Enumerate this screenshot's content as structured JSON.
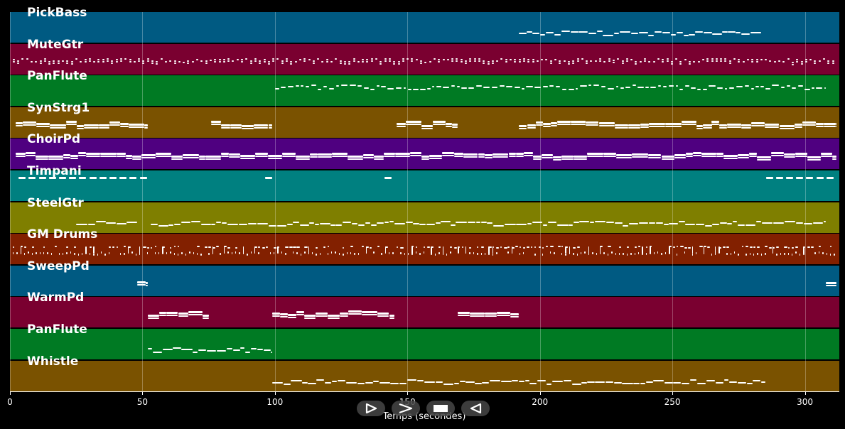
{
  "xaxis": {
    "title": "Temps (secondes)",
    "min": 0,
    "max": 313,
    "ticks": [
      0,
      50,
      100,
      150,
      200,
      250,
      300
    ]
  },
  "colors": {
    "background": "#000000",
    "note": "#ffffff",
    "grid": "#ffffff"
  },
  "tracks": [
    {
      "name": "PickBass",
      "color": "#005a82",
      "style": "legato",
      "mode": "irregular",
      "segments": [
        [
          192,
          284
        ]
      ]
    },
    {
      "name": "MuteGtr",
      "color": "#7a0030",
      "style": "dense",
      "mode": "dense",
      "segments": [
        [
          1,
          312
        ]
      ]
    },
    {
      "name": "PanFlute",
      "color": "#007a23",
      "style": "short",
      "mode": "irregular",
      "segments": [
        [
          100,
          308
        ]
      ]
    },
    {
      "name": "SynStrg1",
      "color": "#7a5200",
      "style": "chords",
      "mode": "chords",
      "segments": [
        [
          2,
          52
        ],
        [
          76,
          99
        ],
        [
          146,
          169
        ],
        [
          192,
          312
        ]
      ]
    },
    {
      "name": "ChoirPd",
      "color": "#4f0080",
      "style": "chords",
      "mode": "chords",
      "segments": [
        [
          2,
          312
        ]
      ]
    },
    {
      "name": "Timpani",
      "color": "#008080",
      "style": "dashes",
      "mode": "dashes",
      "segments": [
        [
          3,
          52
        ],
        [
          96,
          99
        ],
        [
          141,
          145
        ],
        [
          285,
          312
        ]
      ]
    },
    {
      "name": "SteelGtr",
      "color": "#7f7f00",
      "style": "legato",
      "mode": "irregular",
      "segments": [
        [
          25,
          48
        ],
        [
          53,
          308
        ]
      ]
    },
    {
      "name": "GM Drums",
      "color": "#822000",
      "style": "drums",
      "mode": "drums",
      "segments": [
        [
          1,
          312
        ]
      ]
    },
    {
      "name": "SweepPd",
      "color": "#005a82",
      "style": "chords",
      "mode": "chords",
      "segments": [
        [
          48,
          52
        ],
        [
          308,
          312
        ]
      ]
    },
    {
      "name": "WarmPd",
      "color": "#7a0030",
      "style": "chords",
      "mode": "chords",
      "segments": [
        [
          52,
          75
        ],
        [
          99,
          145
        ],
        [
          169,
          192
        ]
      ]
    },
    {
      "name": "PanFlute",
      "color": "#007a23",
      "style": "legato",
      "mode": "irregular",
      "segments": [
        [
          52,
          99
        ]
      ]
    },
    {
      "name": "Whistle",
      "color": "#7a5200",
      "style": "legato",
      "mode": "irregular",
      "segments": [
        [
          99,
          285
        ]
      ]
    }
  ],
  "transport": {
    "icons": [
      "play-icon",
      "fast-forward-icon",
      "stop-icon",
      "rewind-icon"
    ]
  }
}
